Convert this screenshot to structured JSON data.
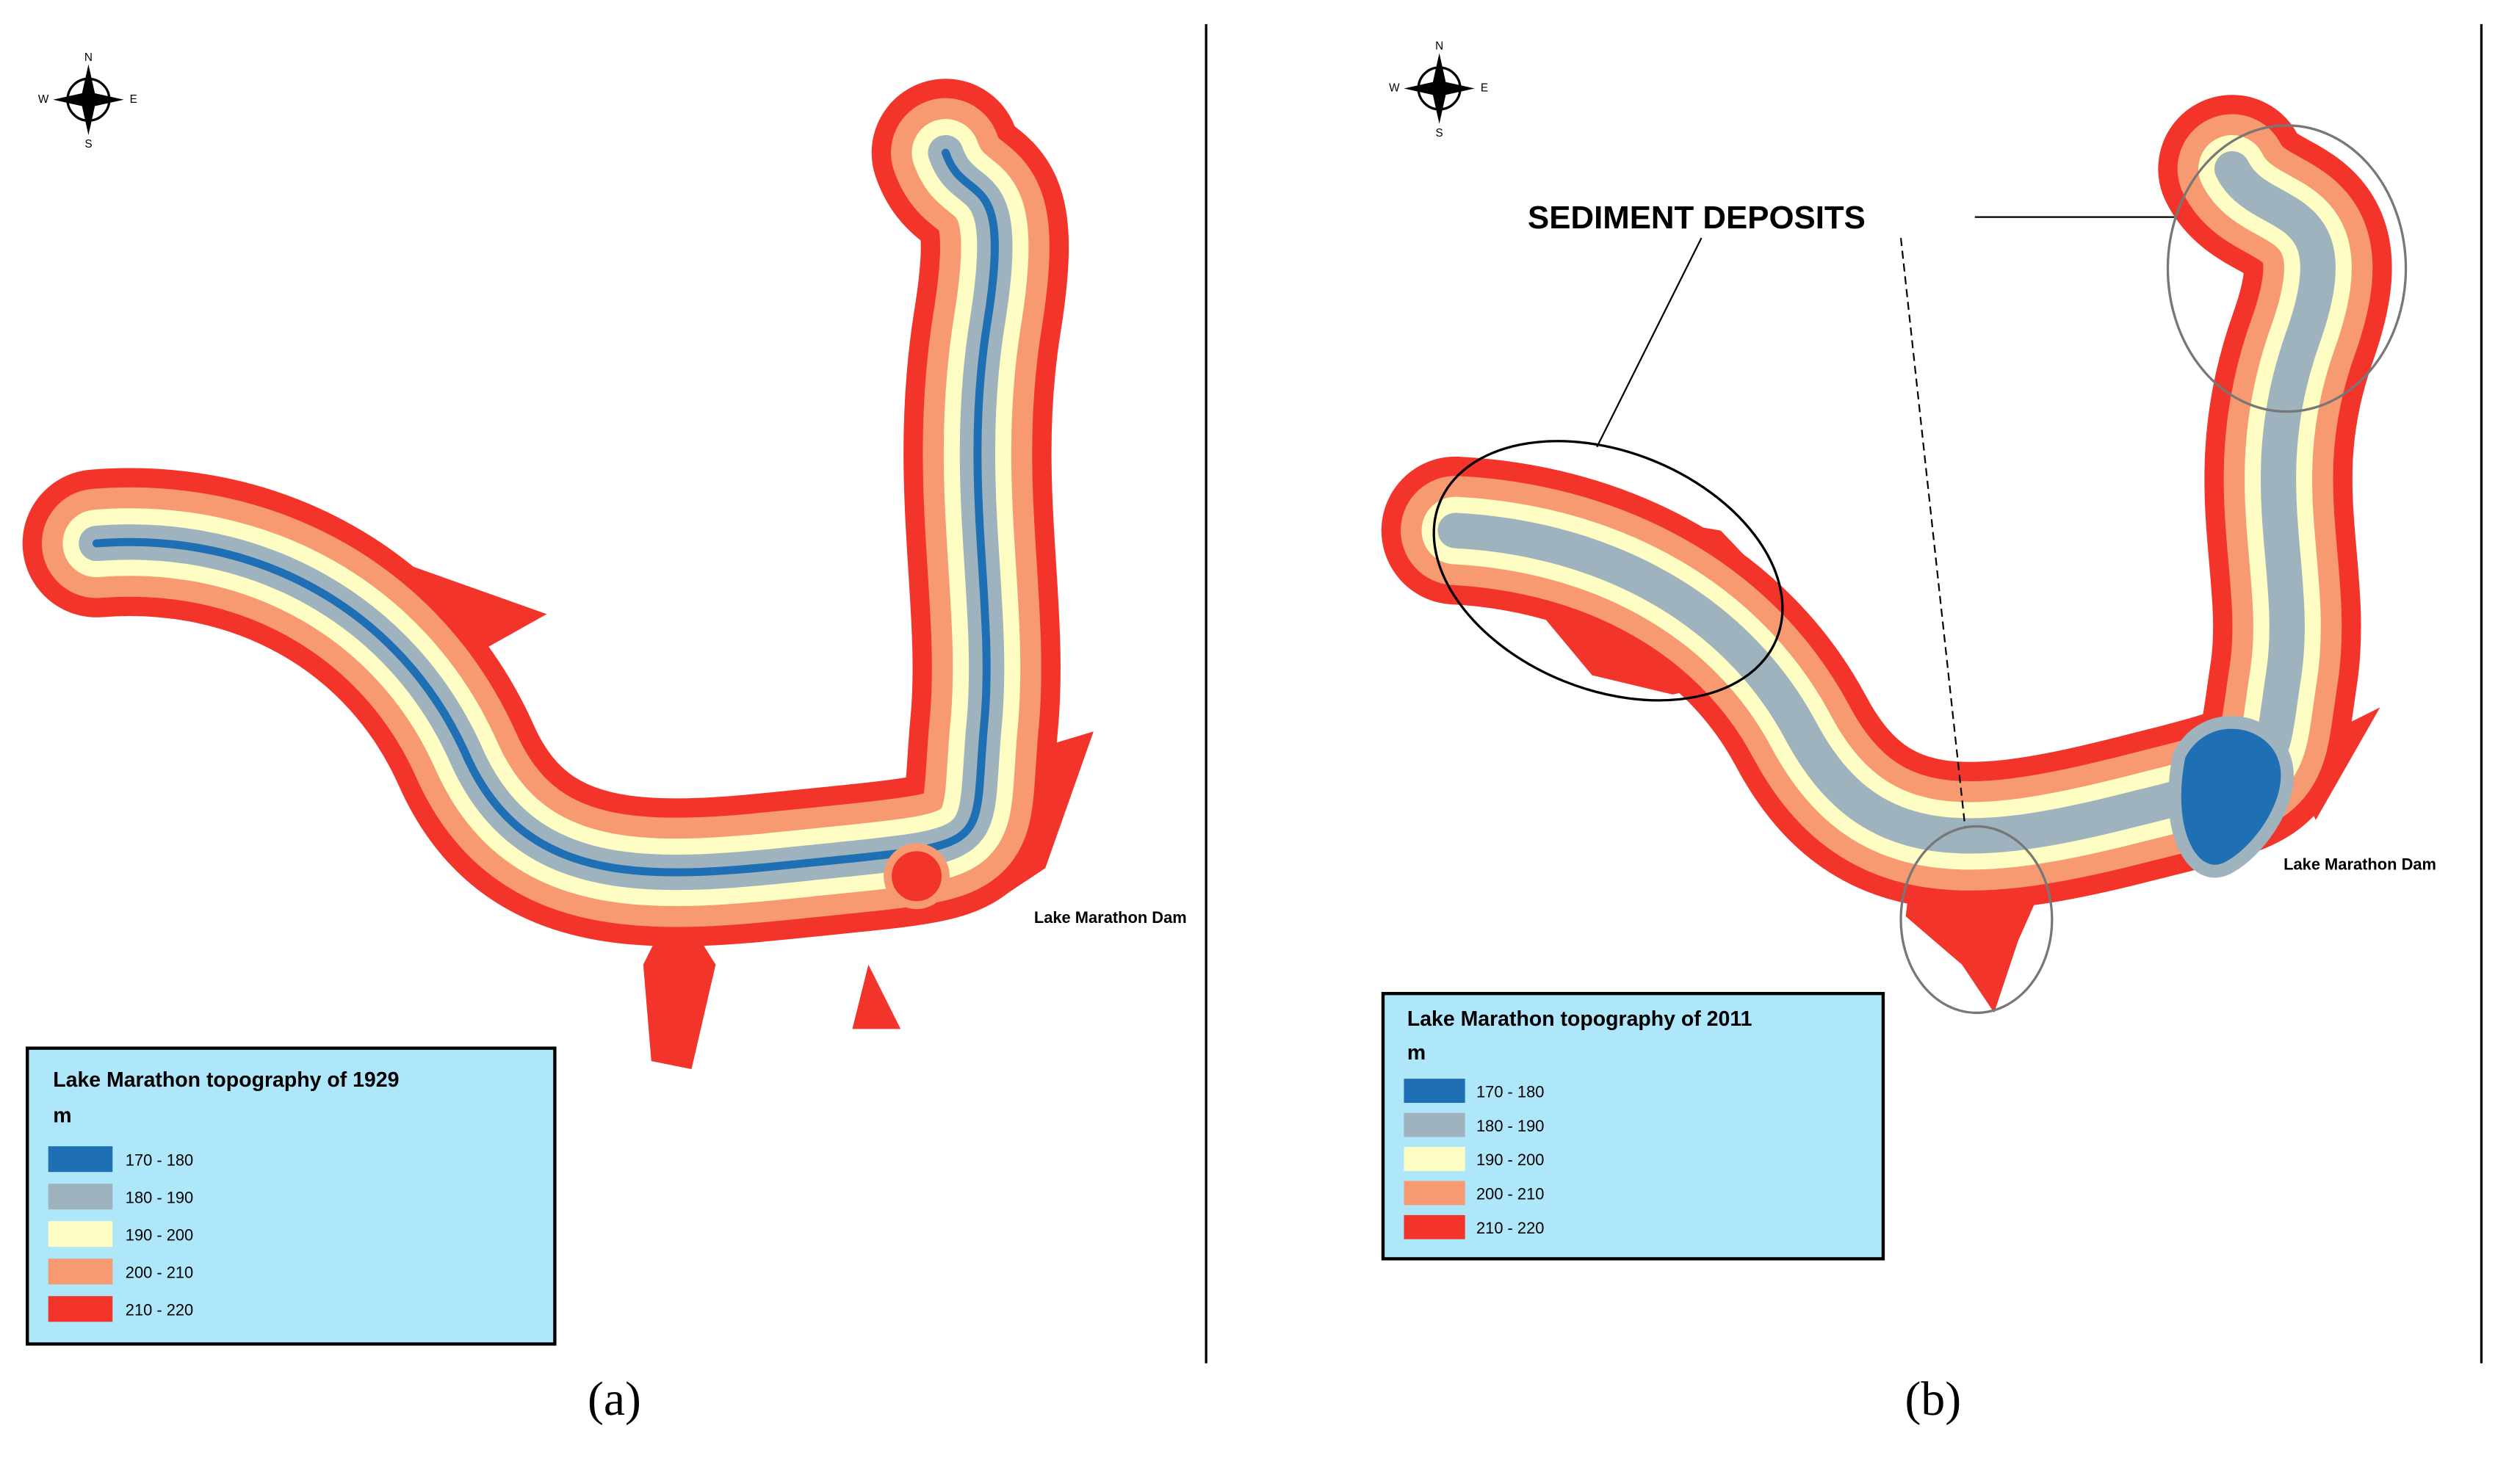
{
  "panels": [
    {
      "label": "(a)",
      "compass": [
        "N",
        "E",
        "S",
        "W"
      ],
      "dam_label": "Lake Marathon Dam",
      "legend": {
        "title": "Lake Marathon topography of 1929",
        "unit": "m",
        "items": [
          {
            "label": "170 - 180",
            "color": "#1f6fb4"
          },
          {
            "label": "180 - 190",
            "color": "#9fb3be"
          },
          {
            "label": "190 - 200",
            "color": "#fdfdc4"
          },
          {
            "label": "200 - 210",
            "color": "#f79a72"
          },
          {
            "label": "210 - 220",
            "color": "#f2342a"
          }
        ]
      }
    },
    {
      "label": "(b)",
      "compass": [
        "N",
        "E",
        "S",
        "W"
      ],
      "dam_label": "Lake Marathon Dam",
      "annotation": "SEDIMENT DEPOSITS",
      "legend": {
        "title": "Lake Marathon topography of 2011",
        "unit": "m",
        "items": [
          {
            "label": "170 - 180",
            "color": "#1f6fb4"
          },
          {
            "label": "180 - 190",
            "color": "#9fb3be"
          },
          {
            "label": "190 - 200",
            "color": "#fdfdc4"
          },
          {
            "label": "200 - 210",
            "color": "#f79a72"
          },
          {
            "label": "210 - 220",
            "color": "#f2342a"
          }
        ]
      }
    }
  ]
}
